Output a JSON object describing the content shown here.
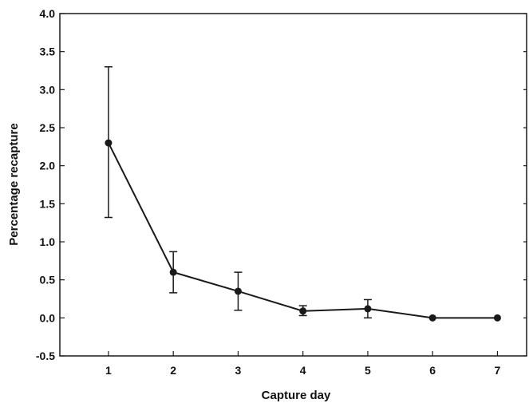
{
  "chart_data": {
    "type": "line",
    "title": "",
    "xlabel": "Capture day",
    "ylabel": "Percentage recapture",
    "x": [
      1,
      2,
      3,
      4,
      5,
      6,
      7
    ],
    "xlim": [
      0.25,
      7.45
    ],
    "ylim": [
      -0.5,
      4.0
    ],
    "xticks": [
      1,
      2,
      3,
      4,
      5,
      6,
      7
    ],
    "xtick_labels": [
      "1",
      "2",
      "3",
      "4",
      "5",
      "6",
      "7"
    ],
    "yticks": [
      -0.5,
      0.0,
      0.5,
      1.0,
      1.5,
      2.0,
      2.5,
      3.0,
      3.5,
      4.0
    ],
    "ytick_labels": [
      "-0.5",
      "0.0",
      "0.5",
      "1.0",
      "1.5",
      "2.0",
      "2.5",
      "3.0",
      "3.5",
      "4.0"
    ],
    "grid": false,
    "series": [
      {
        "values": [
          2.3,
          0.6,
          0.35,
          0.09,
          0.12,
          0.0,
          0.0
        ],
        "error_low": [
          1.32,
          0.33,
          0.1,
          0.03,
          0.0,
          0.0,
          0.0
        ],
        "error_high": [
          3.3,
          0.87,
          0.6,
          0.16,
          0.24,
          0.0,
          0.0
        ],
        "color": "#1a1a1a"
      }
    ]
  }
}
